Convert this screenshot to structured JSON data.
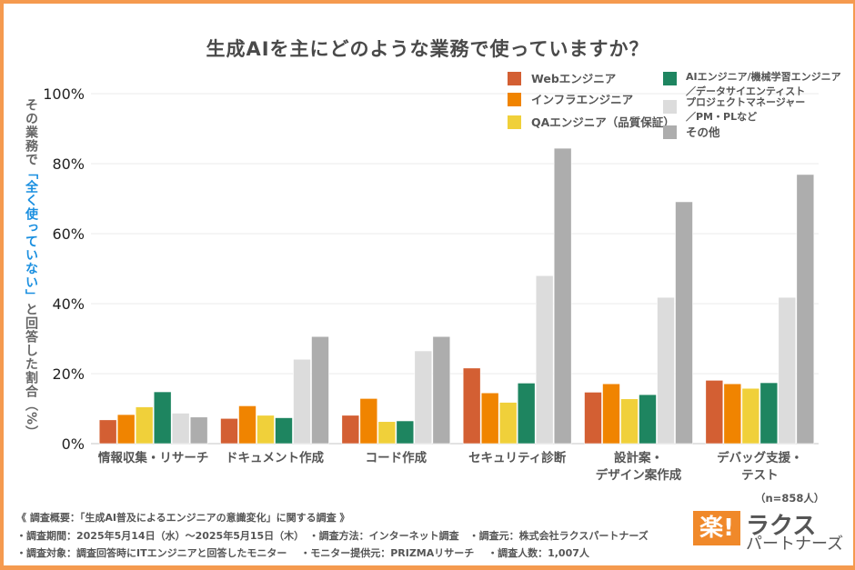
{
  "colors": {
    "frame": "#f59a4f",
    "highlight": "#1a8fe0",
    "logo": "#f0892a"
  },
  "chart_data": {
    "type": "bar",
    "title": "生成AIを主にどのような業務で使っていますか？",
    "ylabel_parts": [
      "その業務で",
      "「全く使っていない」",
      "と回答した割合（%）"
    ],
    "xlabel": "",
    "ylim": [
      0,
      100
    ],
    "yticks": [
      0,
      20,
      40,
      60,
      80,
      100
    ],
    "ytick_labels": [
      "0%",
      "20%",
      "40%",
      "60%",
      "80%",
      "100%"
    ],
    "grid": true,
    "legend_position": "top-right",
    "categories": [
      [
        "情報収集・リサーチ"
      ],
      [
        "ドキュメント作成"
      ],
      [
        "コード作成"
      ],
      [
        "セキュリティ診断"
      ],
      [
        "設計案・",
        "デザイン案作成"
      ],
      [
        "デバッグ支援・",
        "テスト"
      ]
    ],
    "series": [
      {
        "name": "Webエンジニア",
        "legend_lines": [
          "Webエンジニア"
        ],
        "color": "#d35f33",
        "values": [
          6.8,
          7.2,
          8.1,
          21.6,
          14.7,
          18.1
        ]
      },
      {
        "name": "インフラエンジニア",
        "legend_lines": [
          "インフラエンジニア"
        ],
        "color": "#f08400",
        "values": [
          8.3,
          10.8,
          12.9,
          14.5,
          17.1,
          17.1
        ]
      },
      {
        "name": "QAエンジニア（品質保証）",
        "legend_lines": [
          "QAエンジニア（品質保証）"
        ],
        "color": "#f0d03a",
        "values": [
          10.5,
          8.1,
          6.3,
          11.8,
          12.8,
          15.8
        ]
      },
      {
        "name": "AIエンジニア/機械学習エンジニア／データサイエンティスト",
        "legend_lines": [
          "AIエンジニア/機械学習エンジニア",
          "／データサイエンティスト"
        ],
        "color": "#1e8560",
        "values": [
          14.8,
          7.4,
          6.5,
          17.3,
          14.0,
          17.4
        ]
      },
      {
        "name": "プロジェクトマネージャー／PM・PLなど",
        "legend_lines": [
          "プロジェクトマネージャー",
          "／PM・PLなど"
        ],
        "color": "#dcdcdc",
        "values": [
          8.7,
          24.1,
          26.5,
          48.0,
          41.8,
          41.8
        ]
      },
      {
        "name": "その他",
        "legend_lines": [
          "その他"
        ],
        "color": "#adadad",
        "values": [
          7.6,
          30.6,
          30.6,
          84.4,
          69.1,
          76.9
        ]
      }
    ],
    "annotation": "（n=858人）"
  },
  "footer": {
    "line1": "《 調査概要：「生成AI普及によるエンジニアの意識変化」に関する調査 》",
    "line2": "・調査期間：2025年5月14日（水）〜2025年5月15日（木）　・調査方法：インターネット調査　・調査元：株式会社ラクスパートナーズ",
    "line3": "・調査対象：調査回答時にITエンジニアと回答したモニター　 ・モニター提供元：PRIZMAリサーチ　 ・調査人数：1,007人"
  },
  "logo": {
    "mark": "楽!",
    "line1": "ラクス",
    "line2": "パートナーズ"
  }
}
